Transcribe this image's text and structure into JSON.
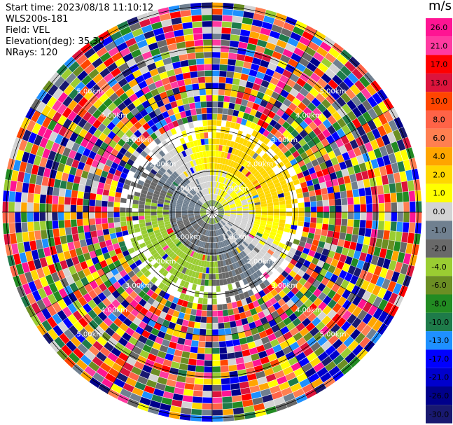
{
  "header": {
    "start_time": "Start time: 2023/08/18 11:10:12",
    "instrument": "WLS200s-181",
    "field": "Field: VEL",
    "elevation": "Elevation(deg): 35.30",
    "nrays": "NRays: 120"
  },
  "colorbar": {
    "unit": "m/s",
    "ticks": [
      "26.0",
      "21.0",
      "17.0",
      "13.0",
      "10.0",
      "8.0",
      "6.0",
      "4.0",
      "2.0",
      "1.0",
      "0.0",
      "-1.0",
      "-2.0",
      "-4.0",
      "-6.0",
      "-8.0",
      "-10.0",
      "-13.0",
      "-17.0",
      "-21.0",
      "-26.0",
      "-30.0"
    ],
    "colors": [
      "#ff1493",
      "#ff3aa0",
      "#ff0000",
      "#dc143c",
      "#ff4500",
      "#ff6347",
      "#ff7f50",
      "#ffa500",
      "#ffd700",
      "#ffff00",
      "#d3d3d3",
      "#708090",
      "#696969",
      "#9acd32",
      "#6b8e23",
      "#228b22",
      "#1e7b4a",
      "#1e90ff",
      "#0000ff",
      "#0000cd",
      "#00008b",
      "#191970"
    ]
  },
  "chart_data": {
    "type": "heatmap",
    "subtype": "radar-ppi",
    "field": "VEL",
    "rays": 120,
    "range_rings_km": [
      1.0,
      2.0,
      3.0,
      4.0,
      5.0
    ],
    "ring_labels": [
      "1.00km",
      "2.00km",
      "3.00km",
      "4.00km",
      "5.00km"
    ],
    "colorscale_ms": [
      26.0,
      21.0,
      17.0,
      13.0,
      10.0,
      8.0,
      6.0,
      4.0,
      2.0,
      1.0,
      0.0,
      -1.0,
      -2.0,
      -4.0,
      -6.0,
      -8.0,
      -10.0,
      -13.0,
      -17.0,
      -21.0,
      -26.0,
      -30.0
    ],
    "pattern": {
      "inner_near_zero_km": 1.0,
      "positive_sector": "north-east",
      "negative_sector": "south-west",
      "noise_beyond_km": 2.2
    }
  }
}
